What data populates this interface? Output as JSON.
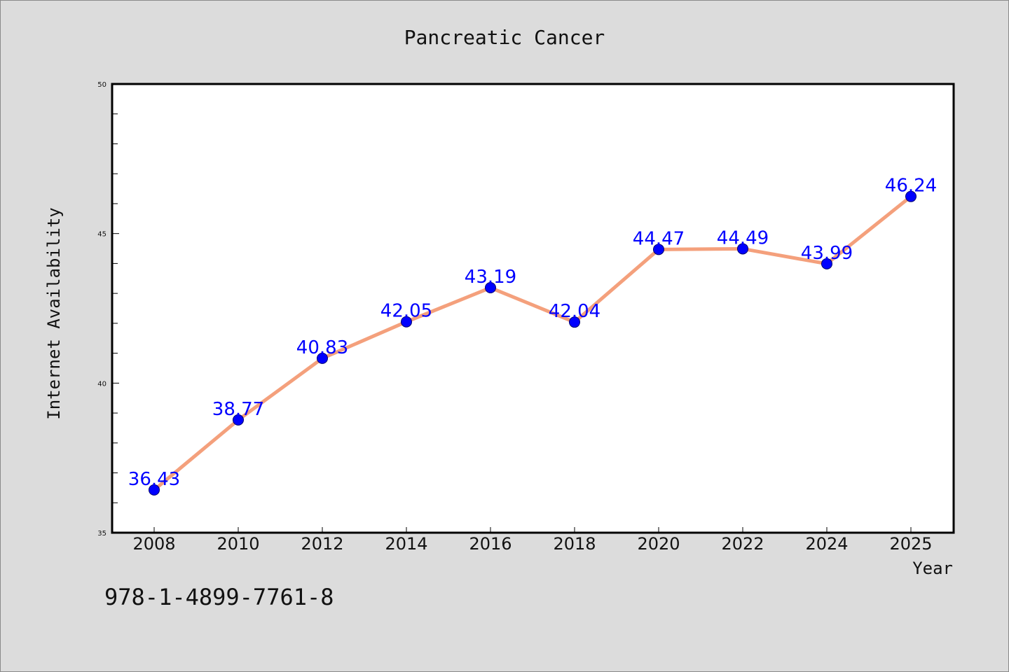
{
  "chart_data": {
    "type": "line",
    "title": "Pancreatic Cancer",
    "xlabel": "Year",
    "ylabel": "Internet Availability",
    "categories": [
      "2008",
      "2010",
      "2012",
      "2014",
      "2016",
      "2018",
      "2020",
      "2022",
      "2024",
      "2025"
    ],
    "series": [
      {
        "values": [
          36.43,
          38.77,
          40.83,
          42.05,
          43.19,
          42.04,
          44.47,
          44.49,
          43.99,
          46.24
        ]
      }
    ],
    "data_labels": [
      "36.43",
      "38.77",
      "40.83",
      "42.05",
      "43.19",
      "42.04",
      "44.47",
      "44.49",
      "43.99",
      "46.24"
    ],
    "ylim": [
      35,
      50
    ],
    "yticks": [
      35,
      40,
      45,
      50
    ],
    "ytick_labels": [
      "35",
      "40",
      "45",
      "50"
    ],
    "grid": false,
    "legend": "none",
    "line_color": "#f4a07c",
    "marker_color": "#0000ff",
    "label_color": "#0000ff"
  },
  "footer": {
    "isbn": "978-1-4899-7761-8"
  }
}
